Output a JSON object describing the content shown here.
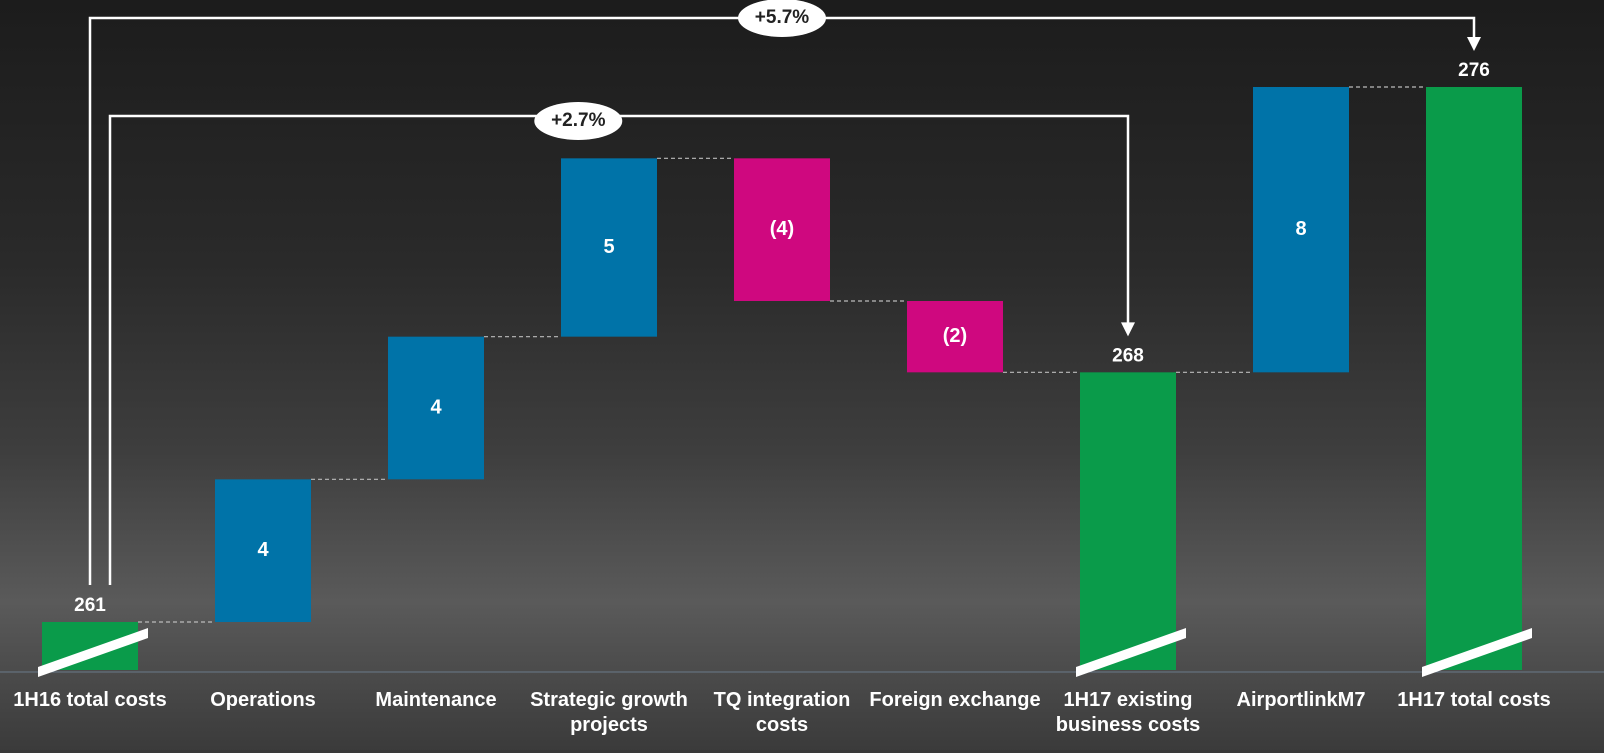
{
  "chart_data": {
    "type": "waterfall",
    "categories": [
      "1H16 total costs",
      "Operations",
      "Maintenance",
      "Strategic growth projects",
      "TQ integration costs",
      "Foreign exchange",
      "1H17 existing business costs",
      "AirportlinkM7",
      "1H17 total costs"
    ],
    "values": [
      261,
      4,
      4,
      5,
      -4,
      -2,
      268,
      8,
      276
    ],
    "value_labels": [
      "261",
      "4",
      "4",
      "5",
      "(4)",
      "(2)",
      "268",
      "8",
      "276"
    ],
    "is_total": [
      true,
      false,
      false,
      false,
      false,
      false,
      true,
      false,
      true
    ],
    "colors": {
      "total": "#0a9b4a",
      "increase": "#0073a8",
      "decrease": "#cf087f"
    },
    "annotations": [
      "+5.7%",
      "+2.7%"
    ]
  }
}
